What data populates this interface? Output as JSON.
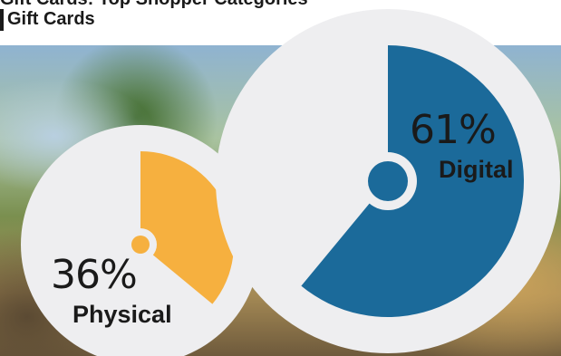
{
  "title": {
    "line1": "Gift Cards: Top Shopper Categories",
    "line2": "Gift Cards"
  },
  "colors": {
    "digital": "#1b6a9a",
    "physical": "#f6b03f",
    "circle_bg": "#eeeef0"
  },
  "chart_data": {
    "type": "pie",
    "categories": [
      "Digital",
      "Physical"
    ],
    "values": [
      61,
      36
    ],
    "labels": [
      "61%",
      "36%"
    ]
  }
}
